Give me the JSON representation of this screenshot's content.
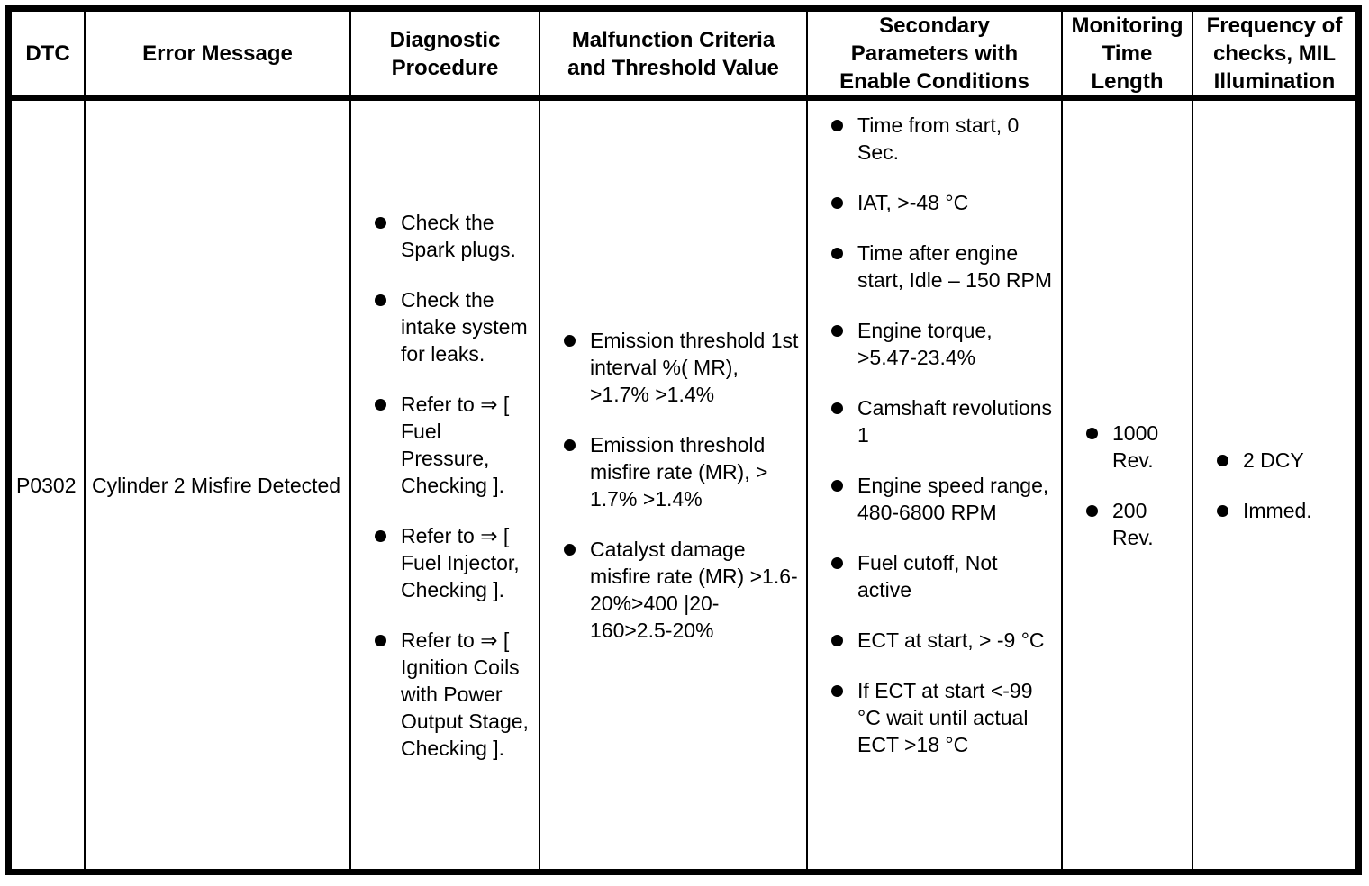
{
  "colors": {
    "border": "#000000",
    "background": "#ffffff",
    "text": "#000000"
  },
  "table": {
    "headers": {
      "dtc": "DTC",
      "error_message": "Error Message",
      "diagnostic_procedure": "Diagnostic\nProcedure",
      "malfunction_criteria": "Malfunction Criteria\nand Threshold Value",
      "secondary_parameters": "Secondary\nParameters with\nEnable Conditions",
      "monitoring_time": "Monitoring\nTime\nLength",
      "frequency": "Frequency of\nchecks, MIL\nIllumination"
    },
    "row": {
      "dtc": "P0302",
      "error_message": "Cylinder 2 Misfire Detected",
      "diagnostic_procedure": [
        "Check the Spark plugs.",
        "Check the intake system for leaks.",
        "Refer to ⇒ [ Fuel Pressure, Checking ].",
        "Refer to ⇒ [ Fuel Injector, Checking ].",
        "Refer to ⇒ [ Ignition Coils with Power Output Stage, Checking ]."
      ],
      "malfunction_criteria": [
        "Emission threshold 1st interval %( MR), >1.7% >1.4%",
        "Emission threshold misfire rate (MR), > 1.7% >1.4%",
        "Catalyst damage misfire rate (MR) >1.6-20%>400 |20-160>2.5-20%"
      ],
      "secondary_parameters": [
        "Time from start, 0 Sec.",
        "IAT, >-48 °C",
        "Time after engine start, Idle – 150 RPM",
        "Engine torque, >5.47-23.4%",
        "Camshaft revolutions 1",
        "Engine speed range, 480-6800 RPM",
        "Fuel cutoff, Not active",
        "ECT at start, > -9 °C",
        "If ECT at start <-99 °C wait until actual ECT >18 °C"
      ],
      "monitoring_time": [
        "1000 Rev.",
        "200 Rev."
      ],
      "frequency": [
        "2 DCY",
        "Immed."
      ]
    }
  }
}
